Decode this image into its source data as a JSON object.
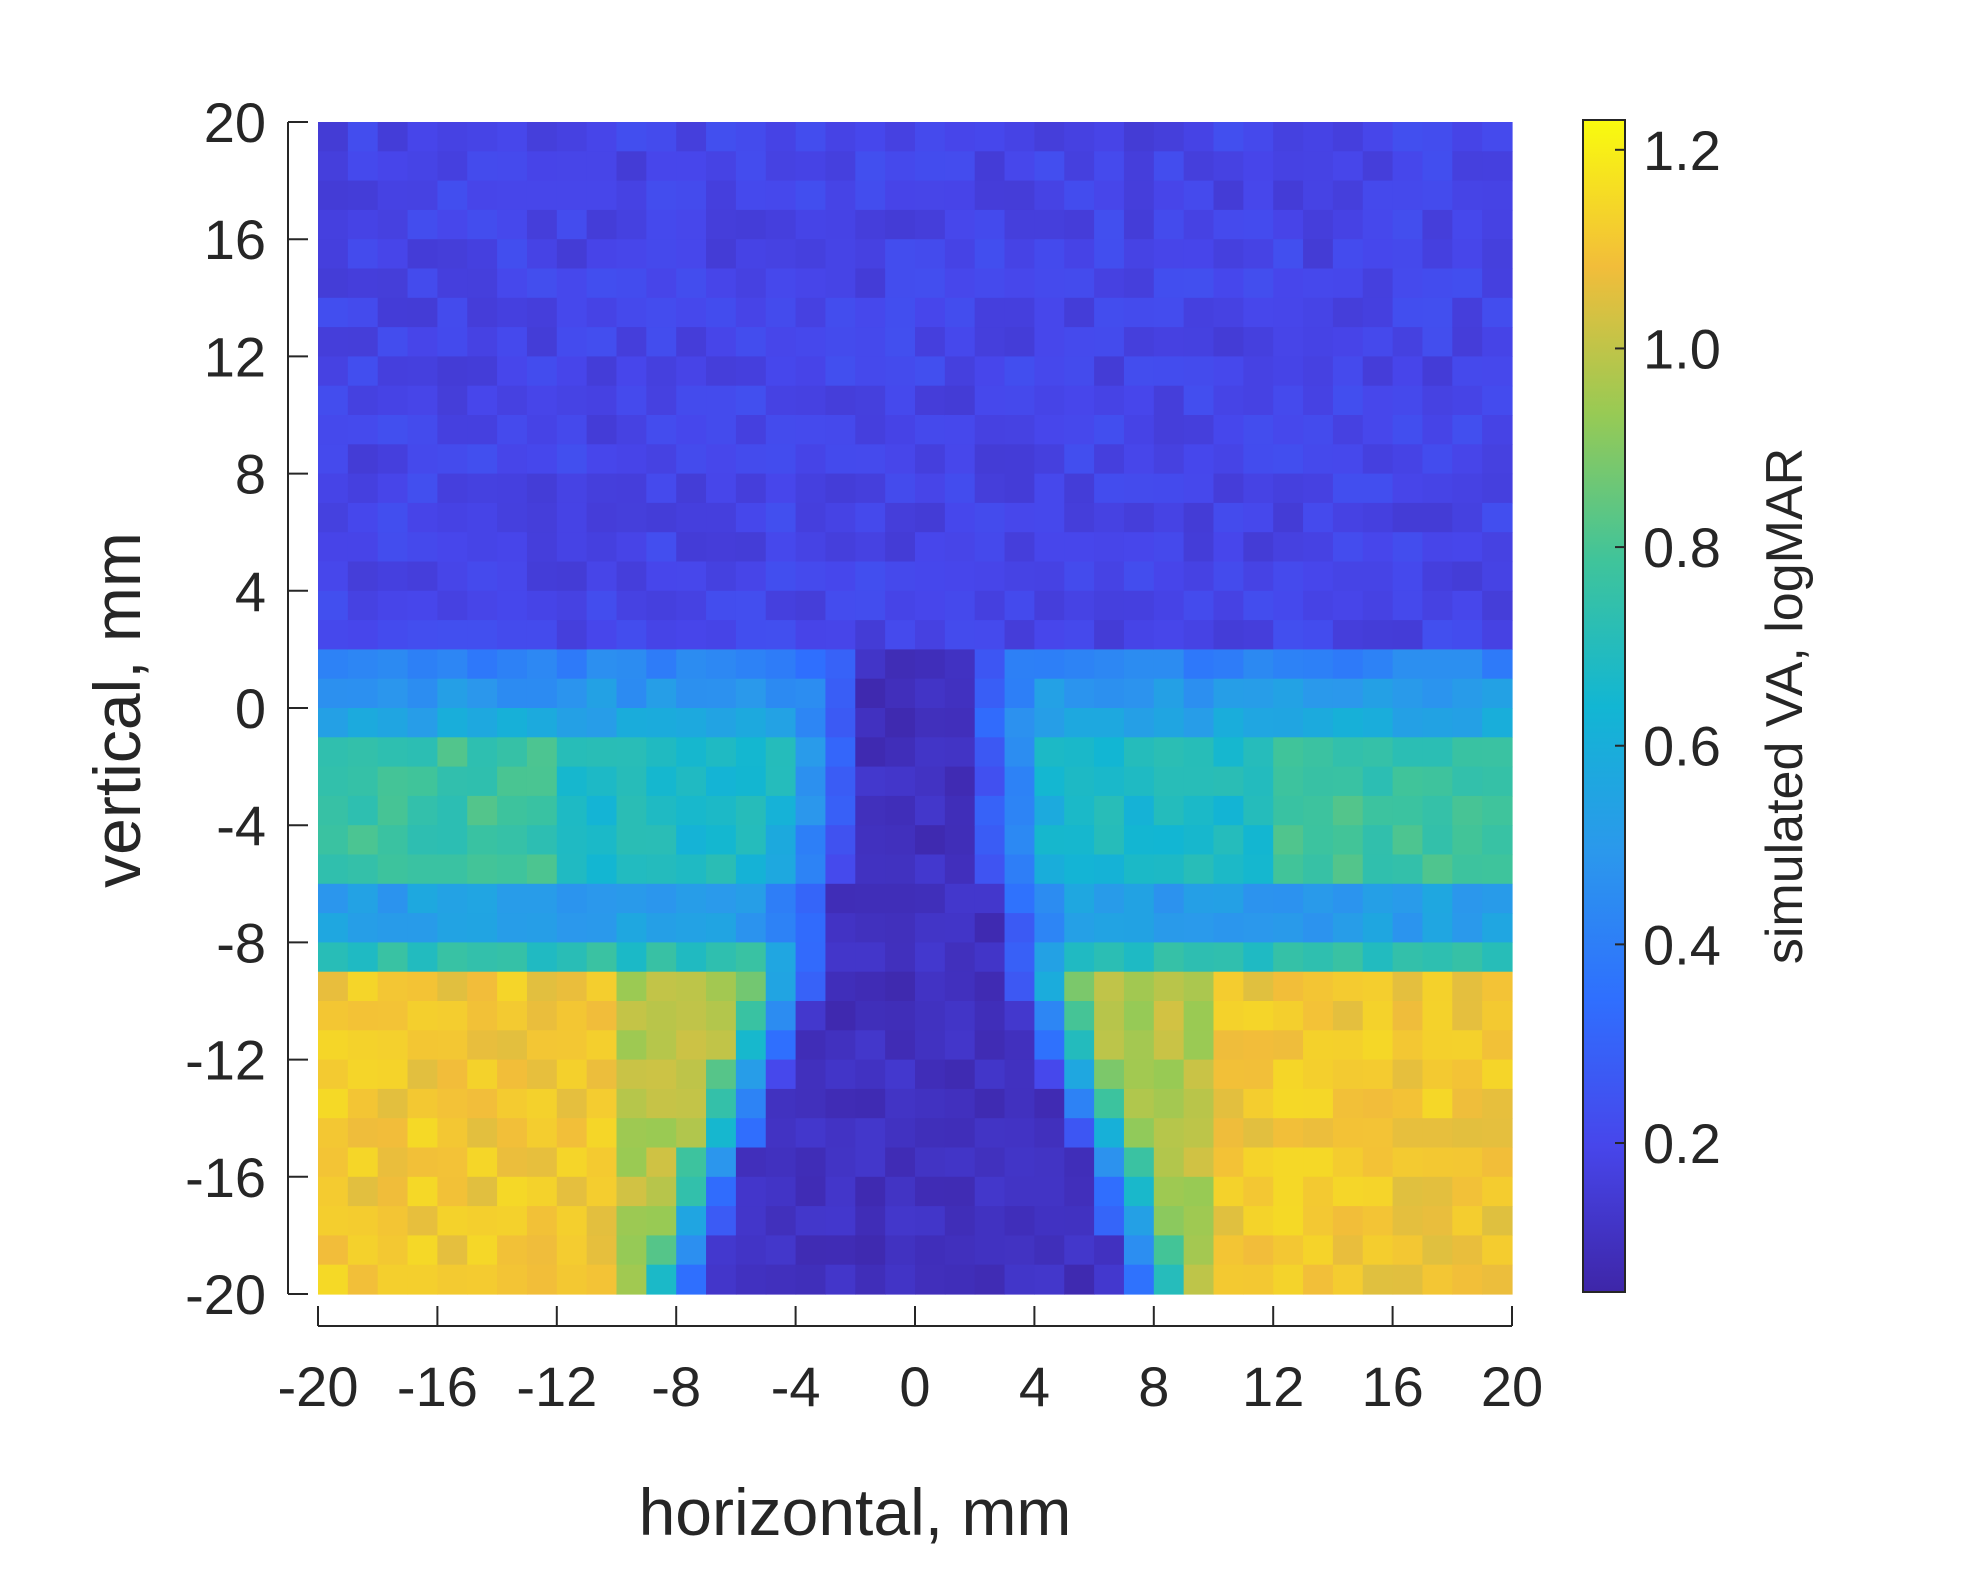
{
  "chart_data": {
    "type": "heatmap",
    "xlabel": "horizontal, mm",
    "ylabel": "vertical, mm",
    "xlim": [
      -20,
      20
    ],
    "ylim": [
      -20,
      20
    ],
    "xticks": [
      "-20",
      "-16",
      "-12",
      "-8",
      "-4",
      "0",
      "4",
      "8",
      "12",
      "16",
      "20"
    ],
    "yticks": [
      "20",
      "16",
      "12",
      "8",
      "4",
      "0",
      "-4",
      "-8",
      "-12",
      "-16",
      "-20"
    ],
    "grid": false,
    "colormap": "parula",
    "grid_cells": [
      40,
      40
    ],
    "colorbar": {
      "label": "simulated VA, logMAR",
      "range": [
        0.05,
        1.23
      ],
      "ticks": [
        "0.2",
        "0.4",
        "0.6",
        "0.8",
        "1.0",
        "1.2"
      ],
      "tick_values": [
        0.2,
        0.4,
        0.6,
        0.8,
        1.0,
        1.2
      ]
    },
    "pattern": {
      "upper_region_value": 0.2,
      "lateral_band_value": 0.75,
      "lower_corner_peak_value": 1.15,
      "central_channel_value": 0.12
    }
  }
}
